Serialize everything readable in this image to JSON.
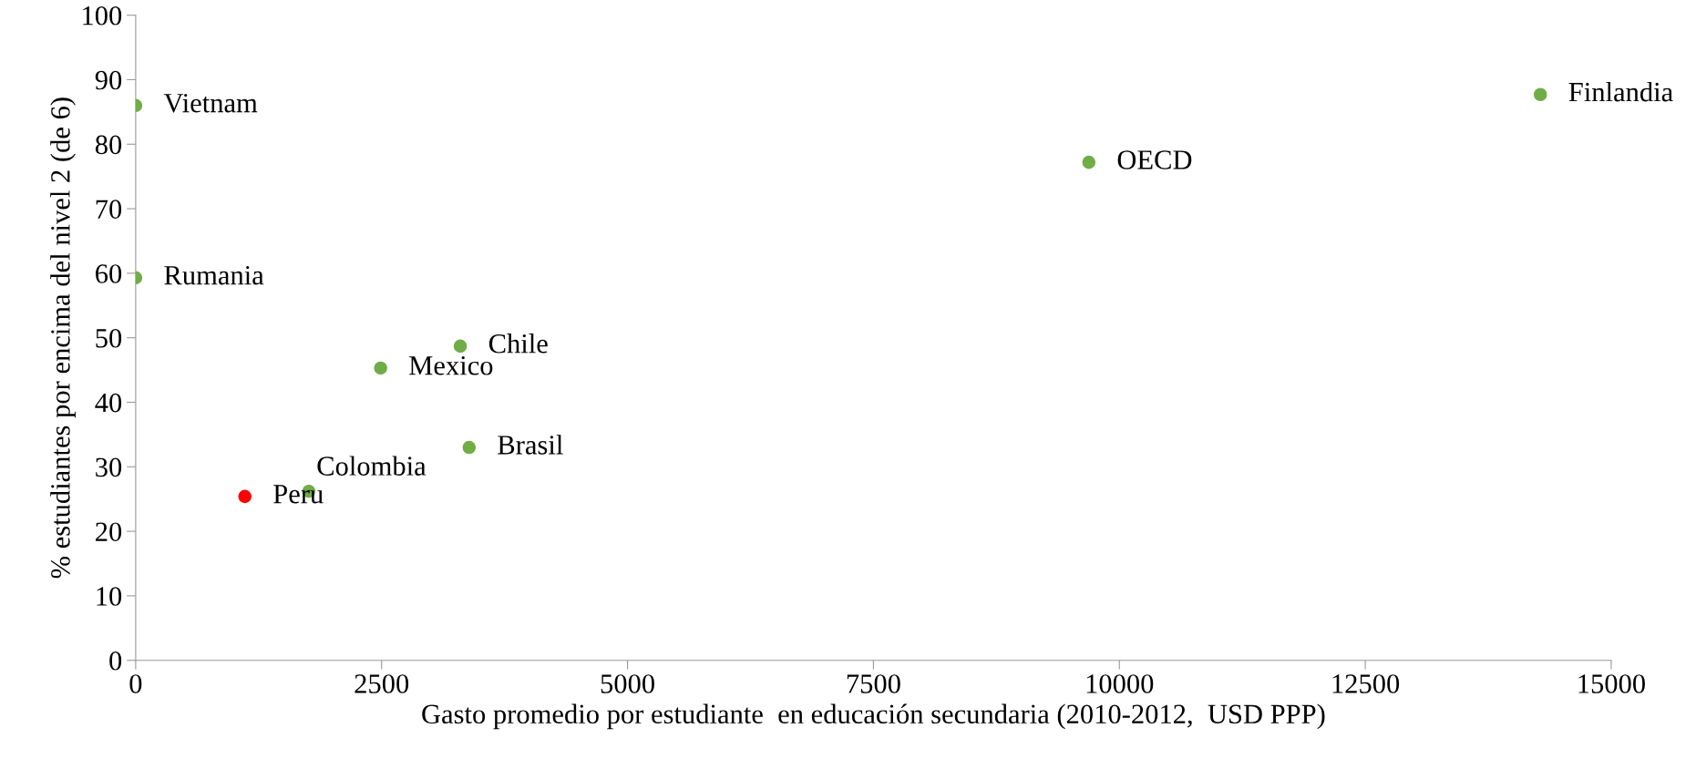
{
  "chart_data": {
    "type": "scatter",
    "xlabel": "Gasto promedio por estudiante  en educación secundaria (2010-2012,  USD PPP)",
    "ylabel": "% estudiantes por encima del nivel 2 (de 6)",
    "xlim": [
      0,
      15000
    ],
    "xticks": [
      0,
      2500,
      5000,
      7500,
      10000,
      12500,
      15000
    ],
    "ylim": [
      0,
      100
    ],
    "yticks": [
      0,
      10,
      20,
      30,
      40,
      50,
      60,
      70,
      80,
      90,
      100
    ],
    "grid": false,
    "legend": false,
    "marker": "circle",
    "series": [
      {
        "name": "Vietnam",
        "color": "#70ad47",
        "x": [
          0
        ],
        "values": [
          86.0
        ]
      },
      {
        "name": "Rumania",
        "color": "#70ad47",
        "x": [
          0
        ],
        "values": [
          59.3
        ]
      },
      {
        "name": "Chile",
        "color": "#70ad47",
        "x": [
          3300
        ],
        "values": [
          48.7
        ]
      },
      {
        "name": "Mexico",
        "color": "#70ad47",
        "x": [
          2490
        ],
        "values": [
          45.3
        ]
      },
      {
        "name": "Brasil",
        "color": "#70ad47",
        "x": [
          3390
        ],
        "values": [
          33.0
        ]
      },
      {
        "name": "Colombia",
        "color": "#70ad47",
        "x": [
          1760
        ],
        "values": [
          26.2
        ]
      },
      {
        "name": "Peru",
        "color": "#ff0000",
        "x": [
          1110
        ],
        "values": [
          25.4
        ]
      },
      {
        "name": "OECD",
        "color": "#70ad47",
        "x": [
          9690
        ],
        "values": [
          77.2
        ]
      },
      {
        "name": "Finlandia",
        "color": "#70ad47",
        "x": [
          14280
        ],
        "values": [
          87.7
        ]
      }
    ]
  }
}
